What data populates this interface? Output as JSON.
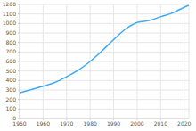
{
  "chart_data": {
    "type": "line",
    "x": [
      1950,
      1955,
      1960,
      1965,
      1970,
      1975,
      1980,
      1985,
      1990,
      1995,
      2000,
      2005,
      2010,
      2015,
      2020,
      2022
    ],
    "values": [
      270,
      305,
      340,
      380,
      440,
      510,
      600,
      710,
      830,
      940,
      1010,
      1030,
      1070,
      1110,
      1170,
      1190
    ],
    "color": "#3fa9f5",
    "xlim": [
      1950,
      2022
    ],
    "xticks": [
      1950,
      1960,
      1970,
      1980,
      1990,
      2000,
      2010,
      2020
    ],
    "ylim": [
      0,
      1200
    ],
    "yticks": [
      0,
      100,
      200,
      300,
      400,
      500,
      600,
      700,
      800,
      900,
      1000,
      1100,
      1200
    ],
    "grid": true
  }
}
